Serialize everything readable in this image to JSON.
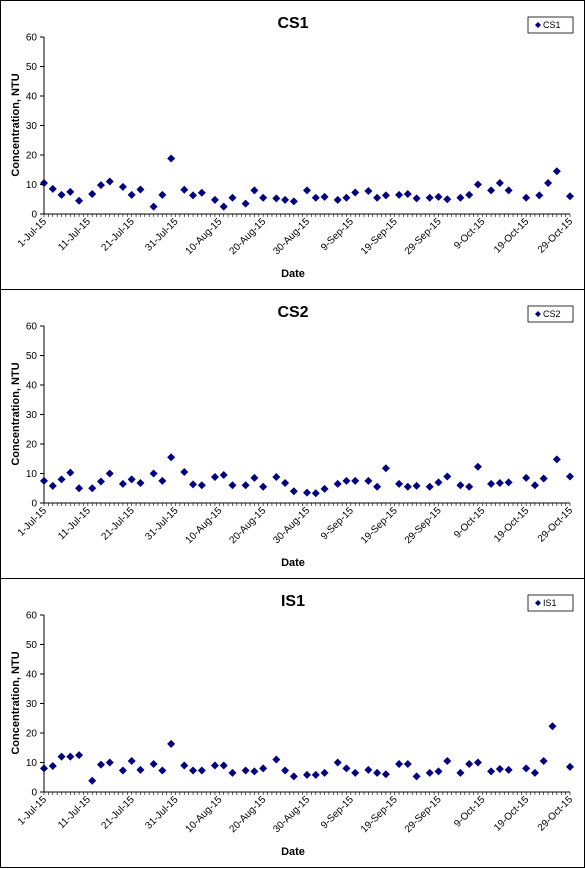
{
  "chart_data": [
    {
      "type": "scatter",
      "title": "CS1",
      "xlabel": "Date",
      "ylabel": "Concentration, NTU",
      "ylim": [
        0,
        60
      ],
      "yticks": [
        "0",
        "10",
        "20",
        "30",
        "40",
        "50",
        "60"
      ],
      "xlim": [
        "2015-07-01",
        "2015-10-29"
      ],
      "xticks": [
        "1-Jul-15",
        "11-Jul-15",
        "21-Jul-15",
        "31-Jul-15",
        "10-Aug-15",
        "20-Aug-15",
        "30-Aug-15",
        "9-Sep-15",
        "19-Sep-15",
        "29-Sep-15",
        "9-Oct-15",
        "19-Oct-15",
        "29-Oct-15"
      ],
      "grid": false,
      "legend": "top-right",
      "marker_color": "#000080",
      "series": [
        {
          "name": "CS1",
          "points": [
            [
              "2015-07-01",
              10.5
            ],
            [
              "2015-07-03",
              8.5
            ],
            [
              "2015-07-05",
              6.5
            ],
            [
              "2015-07-07",
              7.5
            ],
            [
              "2015-07-09",
              4.5
            ],
            [
              "2015-07-12",
              6.8
            ],
            [
              "2015-07-14",
              9.8
            ],
            [
              "2015-07-16",
              11.0
            ],
            [
              "2015-07-19",
              9.2
            ],
            [
              "2015-07-21",
              6.5
            ],
            [
              "2015-07-23",
              8.3
            ],
            [
              "2015-07-26",
              2.5
            ],
            [
              "2015-07-28",
              6.5
            ],
            [
              "2015-07-30",
              18.8
            ],
            [
              "2015-08-02",
              8.2
            ],
            [
              "2015-08-04",
              6.3
            ],
            [
              "2015-08-06",
              7.2
            ],
            [
              "2015-08-09",
              4.8
            ],
            [
              "2015-08-11",
              2.5
            ],
            [
              "2015-08-13",
              5.5
            ],
            [
              "2015-08-16",
              3.5
            ],
            [
              "2015-08-18",
              8.0
            ],
            [
              "2015-08-20",
              5.5
            ],
            [
              "2015-08-23",
              5.3
            ],
            [
              "2015-08-25",
              4.8
            ],
            [
              "2015-08-27",
              4.3
            ],
            [
              "2015-08-30",
              8.0
            ],
            [
              "2015-09-01",
              5.5
            ],
            [
              "2015-09-03",
              5.8
            ],
            [
              "2015-09-06",
              4.8
            ],
            [
              "2015-09-08",
              5.5
            ],
            [
              "2015-09-10",
              7.3
            ],
            [
              "2015-09-13",
              7.8
            ],
            [
              "2015-09-15",
              5.5
            ],
            [
              "2015-09-17",
              6.3
            ],
            [
              "2015-09-20",
              6.5
            ],
            [
              "2015-09-22",
              6.8
            ],
            [
              "2015-09-24",
              5.3
            ],
            [
              "2015-09-27",
              5.5
            ],
            [
              "2015-09-29",
              5.8
            ],
            [
              "2015-10-01",
              5.0
            ],
            [
              "2015-10-04",
              5.5
            ],
            [
              "2015-10-06",
              6.5
            ],
            [
              "2015-10-08",
              10.0
            ],
            [
              "2015-10-11",
              8.0
            ],
            [
              "2015-10-13",
              10.5
            ],
            [
              "2015-10-15",
              8.0
            ],
            [
              "2015-10-19",
              5.5
            ],
            [
              "2015-10-22",
              6.3
            ],
            [
              "2015-10-24",
              10.5
            ],
            [
              "2015-10-26",
              14.5
            ],
            [
              "2015-10-29",
              6.0
            ]
          ]
        }
      ]
    },
    {
      "type": "scatter",
      "title": "CS2",
      "xlabel": "Date",
      "ylabel": "Concentration, NTU",
      "ylim": [
        0,
        60
      ],
      "yticks": [
        "0",
        "10",
        "20",
        "30",
        "40",
        "50",
        "60"
      ],
      "xlim": [
        "2015-07-01",
        "2015-10-29"
      ],
      "xticks": [
        "1-Jul-15",
        "11-Jul-15",
        "21-Jul-15",
        "31-Jul-15",
        "10-Aug-15",
        "20-Aug-15",
        "30-Aug-15",
        "9-Sep-15",
        "19-Sep-15",
        "29-Sep-15",
        "9-Oct-15",
        "19-Oct-15",
        "29-Oct-15"
      ],
      "grid": false,
      "legend": "top-right",
      "marker_color": "#000080",
      "series": [
        {
          "name": "CS2",
          "points": [
            [
              "2015-07-01",
              7.5
            ],
            [
              "2015-07-03",
              5.8
            ],
            [
              "2015-07-05",
              8.0
            ],
            [
              "2015-07-07",
              10.3
            ],
            [
              "2015-07-09",
              5.0
            ],
            [
              "2015-07-12",
              5.0
            ],
            [
              "2015-07-14",
              7.3
            ],
            [
              "2015-07-16",
              10.0
            ],
            [
              "2015-07-19",
              6.5
            ],
            [
              "2015-07-21",
              8.0
            ],
            [
              "2015-07-23",
              6.8
            ],
            [
              "2015-07-26",
              10.0
            ],
            [
              "2015-07-28",
              7.5
            ],
            [
              "2015-07-30",
              15.5
            ],
            [
              "2015-08-02",
              10.5
            ],
            [
              "2015-08-04",
              6.3
            ],
            [
              "2015-08-06",
              6.0
            ],
            [
              "2015-08-09",
              8.8
            ],
            [
              "2015-08-11",
              9.5
            ],
            [
              "2015-08-13",
              6.0
            ],
            [
              "2015-08-16",
              6.0
            ],
            [
              "2015-08-18",
              8.5
            ],
            [
              "2015-08-20",
              5.5
            ],
            [
              "2015-08-23",
              8.8
            ],
            [
              "2015-08-25",
              6.8
            ],
            [
              "2015-08-27",
              4.0
            ],
            [
              "2015-08-30",
              3.5
            ],
            [
              "2015-09-01",
              3.3
            ],
            [
              "2015-09-03",
              4.8
            ],
            [
              "2015-09-06",
              6.5
            ],
            [
              "2015-09-08",
              7.5
            ],
            [
              "2015-09-10",
              7.5
            ],
            [
              "2015-09-13",
              7.5
            ],
            [
              "2015-09-15",
              5.5
            ],
            [
              "2015-09-17",
              11.8
            ],
            [
              "2015-09-20",
              6.5
            ],
            [
              "2015-09-22",
              5.5
            ],
            [
              "2015-09-24",
              5.8
            ],
            [
              "2015-09-27",
              5.5
            ],
            [
              "2015-09-29",
              7.0
            ],
            [
              "2015-10-01",
              9.0
            ],
            [
              "2015-10-04",
              6.0
            ],
            [
              "2015-10-06",
              5.5
            ],
            [
              "2015-10-08",
              12.3
            ],
            [
              "2015-10-11",
              6.5
            ],
            [
              "2015-10-13",
              6.8
            ],
            [
              "2015-10-15",
              7.0
            ],
            [
              "2015-10-19",
              8.5
            ],
            [
              "2015-10-21",
              6.0
            ],
            [
              "2015-10-23",
              8.3
            ],
            [
              "2015-10-26",
              14.8
            ],
            [
              "2015-10-29",
              9.0
            ]
          ]
        }
      ]
    },
    {
      "type": "scatter",
      "title": "IS1",
      "xlabel": "Date",
      "ylabel": "Concentration, NTU",
      "ylim": [
        0,
        60
      ],
      "yticks": [
        "0",
        "10",
        "20",
        "30",
        "40",
        "50",
        "60"
      ],
      "xlim": [
        "2015-07-01",
        "2015-10-29"
      ],
      "xticks": [
        "1-Jul-15",
        "11-Jul-15",
        "21-Jul-15",
        "31-Jul-15",
        "10-Aug-15",
        "20-Aug-15",
        "30-Aug-15",
        "9-Sep-15",
        "19-Sep-15",
        "29-Sep-15",
        "9-Oct-15",
        "19-Oct-15",
        "29-Oct-15"
      ],
      "grid": false,
      "legend": "top-right",
      "marker_color": "#000080",
      "series": [
        {
          "name": "IS1",
          "points": [
            [
              "2015-07-01",
              8.0
            ],
            [
              "2015-07-03",
              8.8
            ],
            [
              "2015-07-05",
              12.0
            ],
            [
              "2015-07-07",
              12.0
            ],
            [
              "2015-07-09",
              12.5
            ],
            [
              "2015-07-12",
              3.8
            ],
            [
              "2015-07-14",
              9.3
            ],
            [
              "2015-07-16",
              10.0
            ],
            [
              "2015-07-19",
              7.3
            ],
            [
              "2015-07-21",
              10.5
            ],
            [
              "2015-07-23",
              7.5
            ],
            [
              "2015-07-26",
              9.5
            ],
            [
              "2015-07-28",
              7.3
            ],
            [
              "2015-07-30",
              16.3
            ],
            [
              "2015-08-02",
              9.0
            ],
            [
              "2015-08-04",
              7.3
            ],
            [
              "2015-08-06",
              7.3
            ],
            [
              "2015-08-09",
              9.0
            ],
            [
              "2015-08-11",
              9.0
            ],
            [
              "2015-08-13",
              6.5
            ],
            [
              "2015-08-16",
              7.3
            ],
            [
              "2015-08-18",
              7.0
            ],
            [
              "2015-08-20",
              8.0
            ],
            [
              "2015-08-23",
              11.0
            ],
            [
              "2015-08-25",
              7.3
            ],
            [
              "2015-08-27",
              5.3
            ],
            [
              "2015-08-30",
              5.8
            ],
            [
              "2015-09-01",
              5.8
            ],
            [
              "2015-09-03",
              6.5
            ],
            [
              "2015-09-06",
              10.0
            ],
            [
              "2015-09-08",
              8.0
            ],
            [
              "2015-09-10",
              6.5
            ],
            [
              "2015-09-13",
              7.5
            ],
            [
              "2015-09-15",
              6.5
            ],
            [
              "2015-09-17",
              6.0
            ],
            [
              "2015-09-20",
              9.5
            ],
            [
              "2015-09-22",
              9.5
            ],
            [
              "2015-09-24",
              5.3
            ],
            [
              "2015-09-27",
              6.5
            ],
            [
              "2015-09-29",
              7.0
            ],
            [
              "2015-10-01",
              10.5
            ],
            [
              "2015-10-04",
              6.5
            ],
            [
              "2015-10-06",
              9.5
            ],
            [
              "2015-10-08",
              10.0
            ],
            [
              "2015-10-11",
              7.0
            ],
            [
              "2015-10-13",
              7.8
            ],
            [
              "2015-10-15",
              7.5
            ],
            [
              "2015-10-19",
              8.0
            ],
            [
              "2015-10-21",
              6.5
            ],
            [
              "2015-10-23",
              10.5
            ],
            [
              "2015-10-25",
              22.3
            ],
            [
              "2015-10-29",
              8.5
            ]
          ]
        }
      ]
    }
  ]
}
